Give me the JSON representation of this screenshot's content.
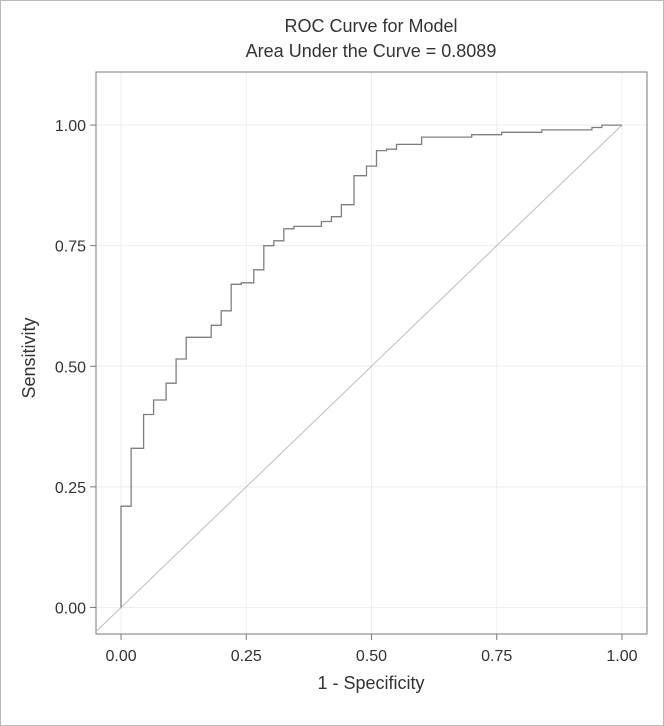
{
  "chart_data": {
    "type": "line",
    "title": "ROC Curve for Model",
    "subtitle": "Area Under the Curve = 0.8089",
    "xlabel": "1 - Specificity",
    "ylabel": "Sensitivity",
    "xlim": [
      -0.05,
      1.05
    ],
    "ylim": [
      -0.055,
      1.11
    ],
    "x_ticks": [
      0,
      0.25,
      0.5,
      0.75,
      1
    ],
    "x_tick_labels": [
      "0.00",
      "0.25",
      "0.50",
      "0.75",
      "1.00"
    ],
    "y_ticks": [
      0,
      0.25,
      0.5,
      0.75,
      1
    ],
    "y_tick_labels": [
      "0.00",
      "0.25",
      "0.50",
      "0.75",
      "1.00"
    ],
    "grid": true,
    "line_color": "#7f7f7f",
    "reference_color": "#bdbdbd",
    "roc_points": [
      [
        0.0,
        0.0
      ],
      [
        0.0,
        0.21
      ],
      [
        0.02,
        0.21
      ],
      [
        0.02,
        0.33
      ],
      [
        0.045,
        0.33
      ],
      [
        0.045,
        0.4
      ],
      [
        0.065,
        0.4
      ],
      [
        0.065,
        0.43
      ],
      [
        0.09,
        0.43
      ],
      [
        0.09,
        0.465
      ],
      [
        0.11,
        0.465
      ],
      [
        0.11,
        0.515
      ],
      [
        0.13,
        0.515
      ],
      [
        0.13,
        0.56
      ],
      [
        0.18,
        0.56
      ],
      [
        0.18,
        0.585
      ],
      [
        0.2,
        0.585
      ],
      [
        0.2,
        0.615
      ],
      [
        0.22,
        0.615
      ],
      [
        0.22,
        0.67
      ],
      [
        0.24,
        0.67
      ],
      [
        0.24,
        0.673
      ],
      [
        0.265,
        0.673
      ],
      [
        0.265,
        0.7
      ],
      [
        0.285,
        0.7
      ],
      [
        0.285,
        0.75
      ],
      [
        0.305,
        0.75
      ],
      [
        0.305,
        0.76
      ],
      [
        0.325,
        0.76
      ],
      [
        0.325,
        0.785
      ],
      [
        0.345,
        0.785
      ],
      [
        0.345,
        0.79
      ],
      [
        0.4,
        0.79
      ],
      [
        0.4,
        0.8
      ],
      [
        0.42,
        0.8
      ],
      [
        0.42,
        0.81
      ],
      [
        0.44,
        0.81
      ],
      [
        0.44,
        0.835
      ],
      [
        0.465,
        0.835
      ],
      [
        0.465,
        0.895
      ],
      [
        0.49,
        0.895
      ],
      [
        0.49,
        0.915
      ],
      [
        0.51,
        0.915
      ],
      [
        0.51,
        0.947
      ],
      [
        0.53,
        0.947
      ],
      [
        0.53,
        0.95
      ],
      [
        0.55,
        0.95
      ],
      [
        0.55,
        0.96
      ],
      [
        0.6,
        0.96
      ],
      [
        0.6,
        0.975
      ],
      [
        0.7,
        0.975
      ],
      [
        0.7,
        0.98
      ],
      [
        0.76,
        0.98
      ],
      [
        0.76,
        0.985
      ],
      [
        0.84,
        0.985
      ],
      [
        0.84,
        0.99
      ],
      [
        0.94,
        0.99
      ],
      [
        0.94,
        0.995
      ],
      [
        0.96,
        0.995
      ],
      [
        0.96,
        1.0
      ],
      [
        1.0,
        1.0
      ]
    ],
    "reference_line": [
      [
        -0.05,
        -0.05
      ],
      [
        1.0,
        1.0
      ]
    ]
  }
}
